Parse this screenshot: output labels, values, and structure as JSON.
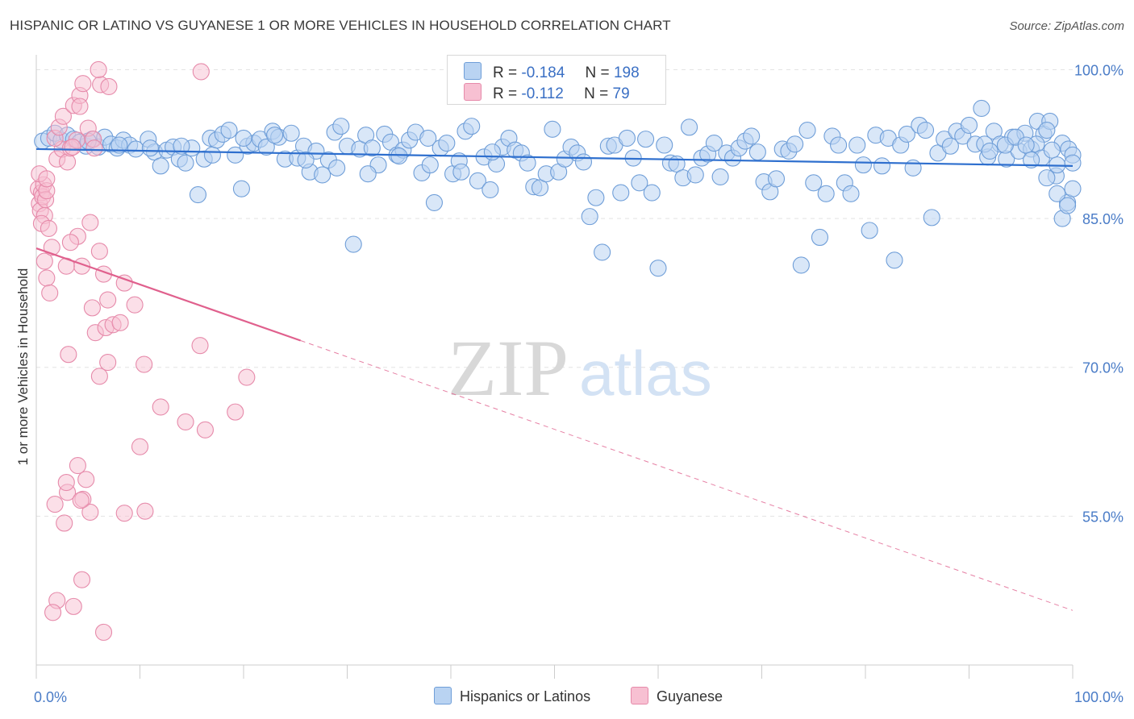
{
  "title": "HISPANIC OR LATINO VS GUYANESE 1 OR MORE VEHICLES IN HOUSEHOLD CORRELATION CHART",
  "source": "Source: ZipAtlas.com",
  "watermark": {
    "zip": "ZIP",
    "atlas": "atlas"
  },
  "legend_top": {
    "rows": [
      {
        "r_label": "R =",
        "r_value": "-0.184",
        "n_label": "N =",
        "n_value": "198"
      },
      {
        "r_label": "R =",
        "r_value": "-0.112",
        "n_label": "N =",
        "n_value": "79"
      }
    ]
  },
  "colors": {
    "blue_fill": "#b9d3f2",
    "blue_stroke": "#6f9ed8",
    "blue_line": "#2e6fce",
    "pink_fill": "#f7c0d2",
    "pink_stroke": "#e68aaa",
    "pink_line": "#e0608d",
    "tick_text": "#4a7cc7",
    "grid": "#e3e3e3"
  },
  "chart_data": {
    "type": "scatter",
    "title": "HISPANIC OR LATINO VS GUYANESE 1 OR MORE VEHICLES IN HOUSEHOLD CORRELATION CHART",
    "xlabel": "",
    "ylabel": "1 or more Vehicles in Household",
    "xlim": [
      0,
      100
    ],
    "ylim": [
      40,
      101.5
    ],
    "x_tick_labels": [
      "0.0%",
      "100.0%"
    ],
    "y_ticks": [
      55,
      70,
      85,
      100
    ],
    "y_tick_labels": [
      "55.0%",
      "70.0%",
      "85.0%",
      "100.0%"
    ],
    "grid": true,
    "legend_position": "bottom",
    "series": [
      {
        "name": "Hispanics or Latinos",
        "r": -0.184,
        "n": 198,
        "trend": {
          "x": [
            0,
            100
          ],
          "y": [
            92.0,
            90.3
          ]
        },
        "points": [
          [
            0.6,
            92.8
          ],
          [
            1.2,
            93.1
          ],
          [
            1.8,
            93.6
          ],
          [
            2.4,
            92.9
          ],
          [
            3.0,
            93.4
          ],
          [
            3.6,
            93.0
          ],
          [
            4.2,
            92.7
          ],
          [
            4.8,
            92.3
          ],
          [
            5.4,
            93.0
          ],
          [
            6.0,
            92.2
          ],
          [
            6.6,
            93.2
          ],
          [
            7.2,
            92.5
          ],
          [
            7.8,
            92.1
          ],
          [
            8.4,
            92.9
          ],
          [
            9.0,
            92.4
          ],
          [
            9.6,
            92.0
          ],
          [
            10.8,
            93.0
          ],
          [
            11.4,
            91.7
          ],
          [
            12.0,
            90.3
          ],
          [
            12.6,
            91.9
          ],
          [
            13.2,
            92.2
          ],
          [
            13.8,
            91.0
          ],
          [
            14.4,
            90.6
          ],
          [
            15.0,
            92.1
          ],
          [
            15.6,
            87.4
          ],
          [
            16.2,
            91.0
          ],
          [
            16.8,
            93.1
          ],
          [
            17.4,
            92.9
          ],
          [
            18.0,
            93.5
          ],
          [
            18.6,
            93.9
          ],
          [
            19.2,
            91.4
          ],
          [
            19.8,
            88.0
          ],
          [
            20.4,
            92.3
          ],
          [
            21.0,
            92.6
          ],
          [
            21.6,
            93.0
          ],
          [
            22.2,
            92.2
          ],
          [
            22.8,
            93.8
          ],
          [
            23.4,
            93.2
          ],
          [
            24.0,
            91.0
          ],
          [
            24.6,
            93.6
          ],
          [
            25.2,
            91.1
          ],
          [
            25.8,
            92.3
          ],
          [
            26.4,
            89.7
          ],
          [
            27.0,
            91.8
          ],
          [
            27.6,
            89.4
          ],
          [
            28.2,
            90.9
          ],
          [
            28.8,
            93.7
          ],
          [
            29.4,
            94.3
          ],
          [
            30.0,
            92.3
          ],
          [
            30.6,
            82.4
          ],
          [
            31.2,
            92.0
          ],
          [
            31.8,
            93.4
          ],
          [
            32.4,
            92.1
          ],
          [
            33.0,
            90.4
          ],
          [
            33.6,
            93.5
          ],
          [
            34.2,
            92.7
          ],
          [
            34.8,
            91.4
          ],
          [
            35.4,
            91.9
          ],
          [
            36.0,
            92.9
          ],
          [
            36.6,
            93.7
          ],
          [
            37.2,
            89.6
          ],
          [
            37.8,
            93.1
          ],
          [
            38.4,
            86.6
          ],
          [
            39.0,
            92.1
          ],
          [
            39.6,
            92.6
          ],
          [
            40.2,
            89.5
          ],
          [
            40.8,
            90.8
          ],
          [
            41.4,
            93.8
          ],
          [
            42.0,
            94.3
          ],
          [
            42.6,
            88.8
          ],
          [
            43.2,
            91.2
          ],
          [
            43.8,
            87.9
          ],
          [
            44.4,
            90.5
          ],
          [
            45.0,
            92.2
          ],
          [
            45.6,
            93.1
          ],
          [
            46.2,
            91.9
          ],
          [
            46.8,
            91.6
          ],
          [
            47.4,
            90.6
          ],
          [
            48.0,
            88.2
          ],
          [
            48.6,
            88.1
          ],
          [
            49.2,
            89.5
          ],
          [
            49.8,
            94.0
          ],
          [
            50.4,
            89.7
          ],
          [
            51.0,
            91.0
          ],
          [
            51.6,
            92.2
          ],
          [
            52.2,
            91.6
          ],
          [
            52.8,
            90.7
          ],
          [
            53.4,
            85.2
          ],
          [
            54.0,
            87.1
          ],
          [
            54.6,
            81.6
          ],
          [
            55.2,
            92.3
          ],
          [
            55.8,
            92.4
          ],
          [
            56.4,
            87.6
          ],
          [
            57.0,
            93.1
          ],
          [
            57.6,
            91.1
          ],
          [
            58.2,
            88.6
          ],
          [
            58.8,
            93.0
          ],
          [
            59.4,
            87.6
          ],
          [
            60.0,
            80.0
          ],
          [
            60.6,
            92.4
          ],
          [
            61.2,
            90.6
          ],
          [
            61.8,
            90.5
          ],
          [
            62.4,
            89.1
          ],
          [
            63.0,
            94.2
          ],
          [
            63.6,
            89.4
          ],
          [
            64.2,
            91.1
          ],
          [
            64.8,
            91.5
          ],
          [
            65.4,
            92.6
          ],
          [
            66.0,
            89.2
          ],
          [
            66.6,
            91.6
          ],
          [
            67.2,
            91.1
          ],
          [
            67.8,
            92.1
          ],
          [
            68.4,
            92.8
          ],
          [
            69.0,
            93.3
          ],
          [
            69.6,
            91.7
          ],
          [
            70.2,
            88.7
          ],
          [
            70.8,
            87.7
          ],
          [
            71.4,
            89.0
          ],
          [
            72.0,
            92.0
          ],
          [
            72.6,
            91.8
          ],
          [
            73.2,
            92.5
          ],
          [
            73.8,
            80.3
          ],
          [
            74.4,
            93.9
          ],
          [
            75.0,
            88.6
          ],
          [
            75.6,
            83.1
          ],
          [
            76.2,
            87.5
          ],
          [
            76.8,
            93.3
          ],
          [
            77.4,
            92.4
          ],
          [
            78.0,
            88.6
          ],
          [
            78.6,
            87.5
          ],
          [
            79.2,
            92.4
          ],
          [
            79.8,
            90.4
          ],
          [
            80.4,
            83.8
          ],
          [
            81.0,
            93.4
          ],
          [
            81.6,
            90.3
          ],
          [
            82.2,
            93.1
          ],
          [
            82.8,
            80.8
          ],
          [
            83.4,
            92.4
          ],
          [
            84.0,
            93.5
          ],
          [
            84.6,
            90.1
          ],
          [
            85.2,
            94.4
          ],
          [
            85.8,
            93.9
          ],
          [
            86.4,
            85.1
          ],
          [
            87.0,
            91.6
          ],
          [
            87.6,
            93.0
          ],
          [
            88.2,
            92.3
          ],
          [
            88.8,
            93.8
          ],
          [
            89.4,
            93.3
          ],
          [
            90.0,
            94.4
          ],
          [
            90.6,
            92.5
          ],
          [
            91.2,
            96.1
          ],
          [
            91.8,
            91.2
          ],
          [
            92.4,
            93.8
          ],
          [
            93.0,
            92.5
          ],
          [
            93.6,
            91.0
          ],
          [
            94.2,
            93.2
          ],
          [
            94.8,
            91.8
          ],
          [
            95.4,
            93.6
          ],
          [
            96.0,
            92.0
          ],
          [
            96.6,
            94.8
          ],
          [
            97.2,
            93.5
          ],
          [
            97.8,
            94.8
          ],
          [
            98.4,
            89.3
          ],
          [
            99.0,
            92.6
          ],
          [
            99.6,
            92.0
          ],
          [
            100.0,
            91.4
          ],
          [
            96.5,
            92.5
          ],
          [
            97.0,
            91.1
          ],
          [
            97.5,
            93.9
          ],
          [
            98.0,
            91.9
          ],
          [
            98.5,
            90.4
          ],
          [
            99.0,
            85.0
          ],
          [
            99.5,
            86.6
          ],
          [
            100.0,
            90.6
          ],
          [
            91.5,
            92.5
          ],
          [
            92.0,
            91.8
          ],
          [
            93.5,
            92.4
          ],
          [
            94.5,
            93.2
          ],
          [
            95.5,
            92.4
          ],
          [
            96.0,
            90.9
          ],
          [
            97.5,
            89.1
          ],
          [
            98.5,
            87.5
          ],
          [
            99.5,
            86.3
          ],
          [
            100.0,
            88.0
          ],
          [
            5.0,
            92.8
          ],
          [
            8.0,
            92.4
          ],
          [
            11.0,
            92.1
          ],
          [
            14.0,
            92.3
          ],
          [
            17.0,
            91.4
          ],
          [
            20.0,
            93.1
          ],
          [
            23.0,
            93.4
          ],
          [
            26.0,
            90.9
          ],
          [
            29.0,
            90.1
          ],
          [
            32.0,
            89.5
          ],
          [
            35.0,
            91.3
          ],
          [
            38.0,
            90.4
          ],
          [
            41.0,
            89.7
          ],
          [
            44.0,
            91.7
          ]
        ]
      },
      {
        "name": "Guyanese",
        "r": -0.112,
        "n": 79,
        "trend": {
          "x": [
            0,
            25.5,
            100
          ],
          "y": [
            82.0,
            72.7,
            45.5
          ]
        },
        "points": [
          [
            0.2,
            88.0
          ],
          [
            0.3,
            86.5
          ],
          [
            0.4,
            85.8
          ],
          [
            0.5,
            87.6
          ],
          [
            0.6,
            87.2
          ],
          [
            0.7,
            88.4
          ],
          [
            0.8,
            85.3
          ],
          [
            0.9,
            86.9
          ],
          [
            1.0,
            87.8
          ],
          [
            0.3,
            89.5
          ],
          [
            0.5,
            84.5
          ],
          [
            1.2,
            84.0
          ],
          [
            0.8,
            80.7
          ],
          [
            1.5,
            82.1
          ],
          [
            1.0,
            79.0
          ],
          [
            1.3,
            77.5
          ],
          [
            2.0,
            91.0
          ],
          [
            2.5,
            92.0
          ],
          [
            1.8,
            93.1
          ],
          [
            2.2,
            94.2
          ],
          [
            3.0,
            90.7
          ],
          [
            3.3,
            92.1
          ],
          [
            2.6,
            95.3
          ],
          [
            3.6,
            96.4
          ],
          [
            3.9,
            92.9
          ],
          [
            4.2,
            97.4
          ],
          [
            4.5,
            98.6
          ],
          [
            5.0,
            94.1
          ],
          [
            5.5,
            93.0
          ],
          [
            6.2,
            98.5
          ],
          [
            6.0,
            100.0
          ],
          [
            5.6,
            92.1
          ],
          [
            7.0,
            98.3
          ],
          [
            5.2,
            84.6
          ],
          [
            6.1,
            81.7
          ],
          [
            6.5,
            79.4
          ],
          [
            6.9,
            76.8
          ],
          [
            5.7,
            73.5
          ],
          [
            5.4,
            76.0
          ],
          [
            6.7,
            74.0
          ],
          [
            6.1,
            69.1
          ],
          [
            6.9,
            70.5
          ],
          [
            7.4,
            74.3
          ],
          [
            8.1,
            74.5
          ],
          [
            8.5,
            78.5
          ],
          [
            9.5,
            76.3
          ],
          [
            10.4,
            70.3
          ],
          [
            12.0,
            66.0
          ],
          [
            10.0,
            62.0
          ],
          [
            14.4,
            64.5
          ],
          [
            15.8,
            72.2
          ],
          [
            16.3,
            63.7
          ],
          [
            19.2,
            65.5
          ],
          [
            20.3,
            69.0
          ],
          [
            4.0,
            83.2
          ],
          [
            4.4,
            80.2
          ],
          [
            3.3,
            82.6
          ],
          [
            2.9,
            80.2
          ],
          [
            3.1,
            71.3
          ],
          [
            4.8,
            58.7
          ],
          [
            2.7,
            54.3
          ],
          [
            3.0,
            57.4
          ],
          [
            4.0,
            60.1
          ],
          [
            4.5,
            56.7
          ],
          [
            5.2,
            55.4
          ],
          [
            8.5,
            55.3
          ],
          [
            10.5,
            55.5
          ],
          [
            2.0,
            46.5
          ],
          [
            1.6,
            45.3
          ],
          [
            3.6,
            45.9
          ],
          [
            4.4,
            48.6
          ],
          [
            6.5,
            43.3
          ],
          [
            4.3,
            56.6
          ],
          [
            2.9,
            58.4
          ],
          [
            1.8,
            56.2
          ],
          [
            15.9,
            99.8
          ],
          [
            4.2,
            96.3
          ],
          [
            3.5,
            92.2
          ],
          [
            1.0,
            89.0
          ]
        ]
      }
    ]
  }
}
